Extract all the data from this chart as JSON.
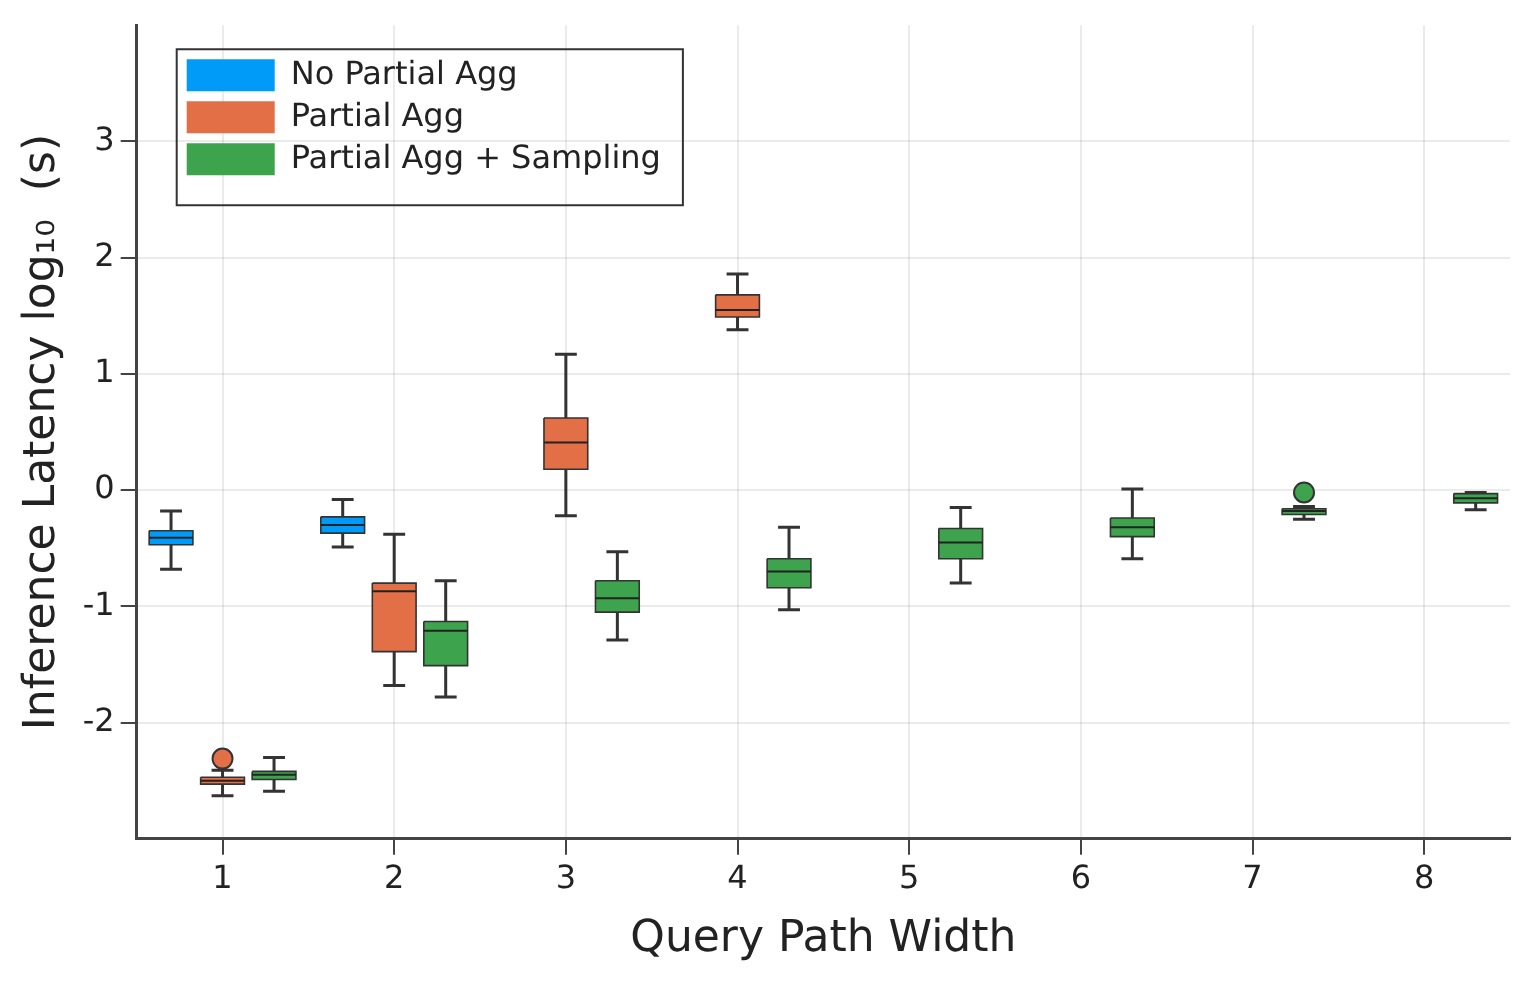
{
  "chart_data": {
    "type": "box",
    "xlabel": "Query Path Width",
    "ylabel": "Inference Latency log₁₀  (s)",
    "categories": [
      "1",
      "2",
      "3",
      "4",
      "5",
      "6",
      "7",
      "8"
    ],
    "series": [
      {
        "name": "No Partial Agg",
        "color": "#009af9",
        "boxes": [
          {
            "low": -0.68,
            "q1": -0.47,
            "median": -0.41,
            "q3": -0.35,
            "high": -0.18
          },
          {
            "low": -0.49,
            "q1": -0.37,
            "median": -0.3,
            "q3": -0.23,
            "high": -0.08
          },
          null,
          null,
          null,
          null,
          null,
          null
        ]
      },
      {
        "name": "Partial Agg",
        "color": "#e26f46",
        "boxes": [
          {
            "low": -2.63,
            "q1": -2.53,
            "median": -2.5,
            "q3": -2.47,
            "high": -2.41,
            "outliers": [
              -2.31
            ]
          },
          {
            "low": -1.68,
            "q1": -1.39,
            "median": -0.87,
            "q3": -0.8,
            "high": -0.38
          },
          {
            "low": -0.22,
            "q1": 0.18,
            "median": 0.41,
            "q3": 0.62,
            "high": 1.17
          },
          {
            "low": 1.38,
            "q1": 1.49,
            "median": 1.55,
            "q3": 1.68,
            "high": 1.86
          },
          null,
          null,
          null,
          null
        ]
      },
      {
        "name": "Partial Agg + Sampling",
        "color": "#3da44d",
        "boxes": [
          {
            "low": -2.59,
            "q1": -2.49,
            "median": -2.45,
            "q3": -2.42,
            "high": -2.3
          },
          {
            "low": -1.78,
            "q1": -1.51,
            "median": -1.21,
            "q3": -1.13,
            "high": -0.78
          },
          {
            "low": -1.29,
            "q1": -1.05,
            "median": -0.93,
            "q3": -0.78,
            "high": -0.53
          },
          {
            "low": -1.03,
            "q1": -0.84,
            "median": -0.7,
            "q3": -0.59,
            "high": -0.32
          },
          {
            "low": -0.8,
            "q1": -0.59,
            "median": -0.45,
            "q3": -0.33,
            "high": -0.15
          },
          {
            "low": -0.59,
            "q1": -0.4,
            "median": -0.32,
            "q3": -0.24,
            "high": 0.01
          },
          {
            "low": -0.25,
            "q1": -0.21,
            "median": -0.18,
            "q3": -0.16,
            "high": -0.14,
            "outliers": [
              -0.02
            ]
          },
          {
            "low": -0.17,
            "q1": -0.11,
            "median": -0.07,
            "q3": -0.03,
            "high": -0.02
          }
        ]
      }
    ],
    "ylim": [
      -3,
      4
    ],
    "yticks": [
      -2,
      -1,
      0,
      1,
      2,
      3
    ],
    "grid": true,
    "legend": "top left"
  }
}
